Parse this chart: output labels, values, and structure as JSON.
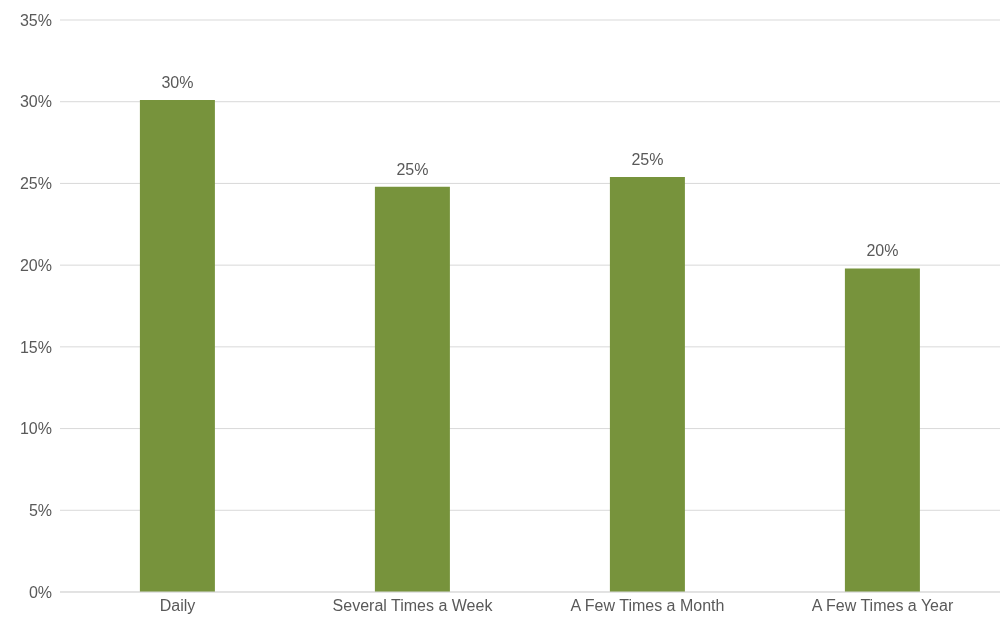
{
  "chart_data": {
    "type": "bar",
    "categories": [
      "Daily",
      "Several Times a Week",
      "A Few Times a Month",
      "A Few Times a Year"
    ],
    "values": [
      30.1,
      24.8,
      25.4,
      19.8
    ],
    "value_labels": [
      "30%",
      "25%",
      "25%",
      "20%"
    ],
    "color": "#77933c",
    "ylim": [
      0,
      35
    ],
    "yticks": [
      {
        "value": 0,
        "label": "0%"
      },
      {
        "value": 5,
        "label": "5%"
      },
      {
        "value": 10,
        "label": "10%"
      },
      {
        "value": 15,
        "label": "15%"
      },
      {
        "value": 20,
        "label": "20%"
      },
      {
        "value": 25,
        "label": "25%"
      },
      {
        "value": 30,
        "label": "30%"
      },
      {
        "value": 35,
        "label": "35%"
      }
    ],
    "grid": "y"
  }
}
